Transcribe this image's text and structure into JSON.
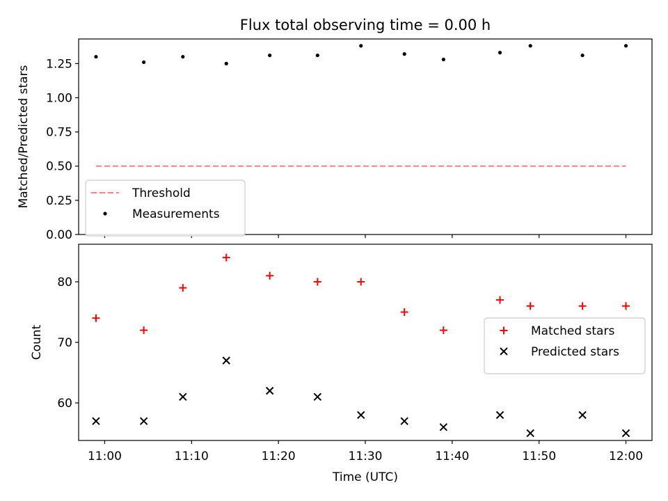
{
  "chart_data": [
    {
      "type": "scatter",
      "title": "Flux total observing time = 0.00 h",
      "xlabel": "",
      "ylabel": "Matched/Predicted stars",
      "x_axis": "time",
      "xlim": [
        "10:57",
        "12:03"
      ],
      "ylim": [
        0,
        1.43
      ],
      "yticks": [
        0.0,
        0.25,
        0.5,
        0.75,
        1.0,
        1.25
      ],
      "ytick_labels": [
        "0.00",
        "0.25",
        "0.50",
        "0.75",
        "1.00",
        "1.25"
      ],
      "grid": false,
      "legend_position": "lower-left",
      "series": [
        {
          "name": "Threshold",
          "kind": "dashed-line",
          "color": "#ff7f7f",
          "x": [
            "10:59",
            "12:00"
          ],
          "y": [
            0.5,
            0.5
          ]
        },
        {
          "name": "Measurements",
          "kind": "dot",
          "color": "#000000",
          "x": [
            "10:59",
            "11:04.5",
            "11:09",
            "11:14",
            "11:19",
            "11:24.5",
            "11:29.5",
            "11:34.5",
            "11:39",
            "11:45.5",
            "11:49",
            "11:55",
            "12:00"
          ],
          "y": [
            1.3,
            1.26,
            1.3,
            1.25,
            1.31,
            1.31,
            1.38,
            1.32,
            1.28,
            1.33,
            1.38,
            1.31,
            1.38
          ]
        }
      ]
    },
    {
      "type": "scatter",
      "title": "",
      "xlabel": "Time (UTC)",
      "ylabel": "Count",
      "x_axis": "time",
      "xlim": [
        "10:57",
        "12:03"
      ],
      "ylim": [
        53.8,
        86.2
      ],
      "yticks": [
        60,
        70,
        80
      ],
      "ytick_labels": [
        "60",
        "70",
        "80"
      ],
      "xticks": [
        "11:00",
        "11:10",
        "11:20",
        "11:30",
        "11:40",
        "11:50",
        "12:00"
      ],
      "xtick_labels": [
        "11:00",
        "11:10",
        "11:20",
        "11:30",
        "11:40",
        "11:50",
        "12:00"
      ],
      "grid": false,
      "legend_position": "center-right",
      "series": [
        {
          "name": "Matched stars",
          "kind": "plus",
          "color": "#ff0000",
          "x": [
            "10:59",
            "11:04.5",
            "11:09",
            "11:14",
            "11:19",
            "11:24.5",
            "11:29.5",
            "11:34.5",
            "11:39",
            "11:45.5",
            "11:49",
            "11:55",
            "12:00"
          ],
          "y": [
            74,
            72,
            79,
            84,
            81,
            80,
            80,
            75,
            72,
            77,
            76,
            76,
            76
          ]
        },
        {
          "name": "Predicted stars",
          "kind": "x",
          "color": "#000000",
          "x": [
            "10:59",
            "11:04.5",
            "11:09",
            "11:14",
            "11:19",
            "11:24.5",
            "11:29.5",
            "11:34.5",
            "11:39",
            "11:45.5",
            "11:49",
            "11:55",
            "12:00"
          ],
          "y": [
            57,
            57,
            61,
            67,
            62,
            61,
            58,
            57,
            56,
            58,
            55,
            58,
            55
          ]
        }
      ]
    }
  ]
}
